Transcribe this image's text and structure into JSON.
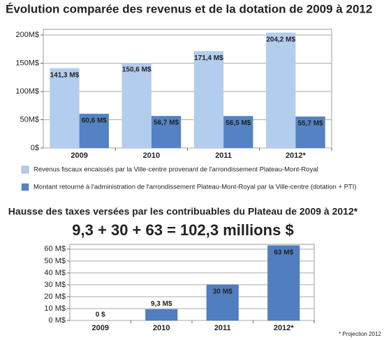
{
  "chart_data": [
    {
      "type": "bar",
      "title": "Évolution comparée des revenus et de la dotation de 2009 à 2012",
      "categories": [
        "2009",
        "2010",
        "2011",
        "2012*"
      ],
      "series": [
        {
          "name": "Revenus fiscaux encaissés par la Ville-centre provenant de l'arrondissement Plateau-Mont-Royal",
          "color": "#b3cdee",
          "values": [
            141.3,
            150.6,
            171.4,
            204.2
          ],
          "value_labels": [
            "141,3 M$",
            "150,6 M$",
            "171,4 M$",
            "204,2 M$"
          ]
        },
        {
          "name": "Montant retourné à l'administration de l'arrondissement Plateau-Mont-Royal par la Ville-centre (dotation + PTI)",
          "color": "#5383c4",
          "values": [
            60.6,
            56.7,
            56.5,
            55.7
          ],
          "value_labels": [
            "60,6 M$",
            "56,7 M$",
            "56,5 M$",
            "55,7 M$"
          ]
        }
      ],
      "ylim": [
        0,
        210
      ],
      "yticks": [
        {
          "value": 0,
          "label": "0$"
        },
        {
          "value": 50,
          "label": "50M$"
        },
        {
          "value": 100,
          "label": "100M$"
        },
        {
          "value": 150,
          "label": "150M$"
        },
        {
          "value": 200,
          "label": "200M$"
        }
      ],
      "grid": true
    },
    {
      "type": "bar",
      "title": "Hausse des taxes versées par les contribuables du Plateau de 2009 à 2012*",
      "subtitle": "9,3 + 30 + 63 = 102,3 millions $",
      "categories": [
        "2009",
        "2010",
        "2011",
        "2012*"
      ],
      "values": [
        0,
        9.3,
        30,
        63
      ],
      "value_labels": [
        "0 $",
        "9,3 M$",
        "30 M$",
        "63 M$"
      ],
      "color": "#4f7fc0",
      "ylim": [
        0,
        64
      ],
      "yticks": [
        {
          "value": 0,
          "label": "0 M$"
        },
        {
          "value": 10,
          "label": "10 M$"
        },
        {
          "value": 20,
          "label": "20 M$"
        },
        {
          "value": 30,
          "label": "30 M$"
        },
        {
          "value": 40,
          "label": "40 M$"
        },
        {
          "value": 50,
          "label": "50 M$"
        },
        {
          "value": 60,
          "label": "60 M$"
        }
      ],
      "grid": true,
      "note": "* Projection 2012"
    }
  ]
}
